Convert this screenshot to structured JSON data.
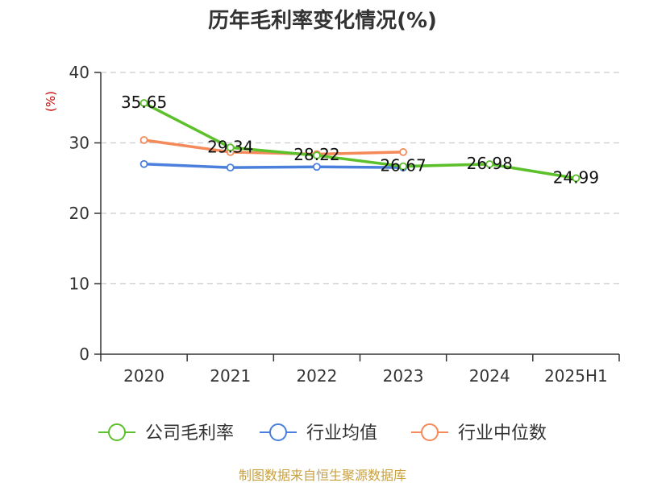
{
  "chart_data": {
    "type": "line",
    "title": "历年毛利率变化情况(%)",
    "ylabel": "(%)",
    "xlabel": "",
    "ylim": [
      0,
      40
    ],
    "yticks": [
      "0",
      "10",
      "20",
      "30",
      "40"
    ],
    "categories": [
      "2020",
      "2021",
      "2022",
      "2023",
      "2024",
      "2025H1"
    ],
    "grid": "dashed-horizontal",
    "legend_position": "bottom",
    "series": [
      {
        "name": "公司毛利率",
        "color": "#5cc02a",
        "values": [
          35.65,
          29.34,
          28.22,
          26.67,
          26.98,
          24.99
        ],
        "labels": [
          "35.65",
          "29.34",
          "28.22",
          "26.67",
          "26.98",
          "24.99"
        ]
      },
      {
        "name": "行业均值",
        "color": "#4a7fdb",
        "values": [
          27.0,
          26.5,
          26.6,
          26.5,
          null,
          null
        ]
      },
      {
        "name": "行业中位数",
        "color": "#f4895a",
        "values": [
          30.4,
          28.7,
          28.4,
          28.7,
          null,
          null
        ]
      }
    ],
    "source": "制图数据来自恒生聚源数据库"
  }
}
